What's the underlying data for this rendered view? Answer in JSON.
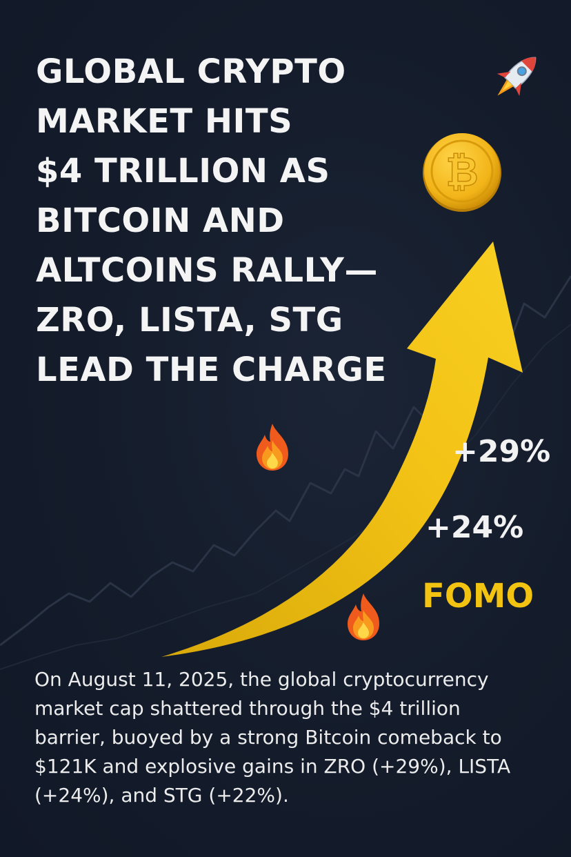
{
  "headline": {
    "lines": [
      "GLOBAL CRYPTO",
      "MARKET HITS",
      "$4 TRILLION AS",
      "BITCOIN AND",
      "ALTCOINS RALLY—",
      "ZRO, LISTA, STG",
      "LEAD THE CHARGE"
    ]
  },
  "stats": {
    "first": "+29%",
    "second": "+24%",
    "tag": "FOMO"
  },
  "body": {
    "lines": [
      "On August 11, 2025, the global cryptocurrency",
      "market cap shattered through the $4 trillion",
      "barrier, buoyed by a strong Bitcoin comeback to",
      "$121K and explosive gains in ZRO (+29%), LISTA",
      "(+24%), and STG (+22%)."
    ]
  },
  "icons": {
    "rocket": "rocket-icon",
    "coin": "bitcoin-coin-icon",
    "coin_symbol": "₿",
    "flame": "fire-icon",
    "arrow": "up-trend-arrow"
  },
  "colors": {
    "background": "#141c2b",
    "accent": "#f2c311",
    "text": "#f4f4f4"
  }
}
